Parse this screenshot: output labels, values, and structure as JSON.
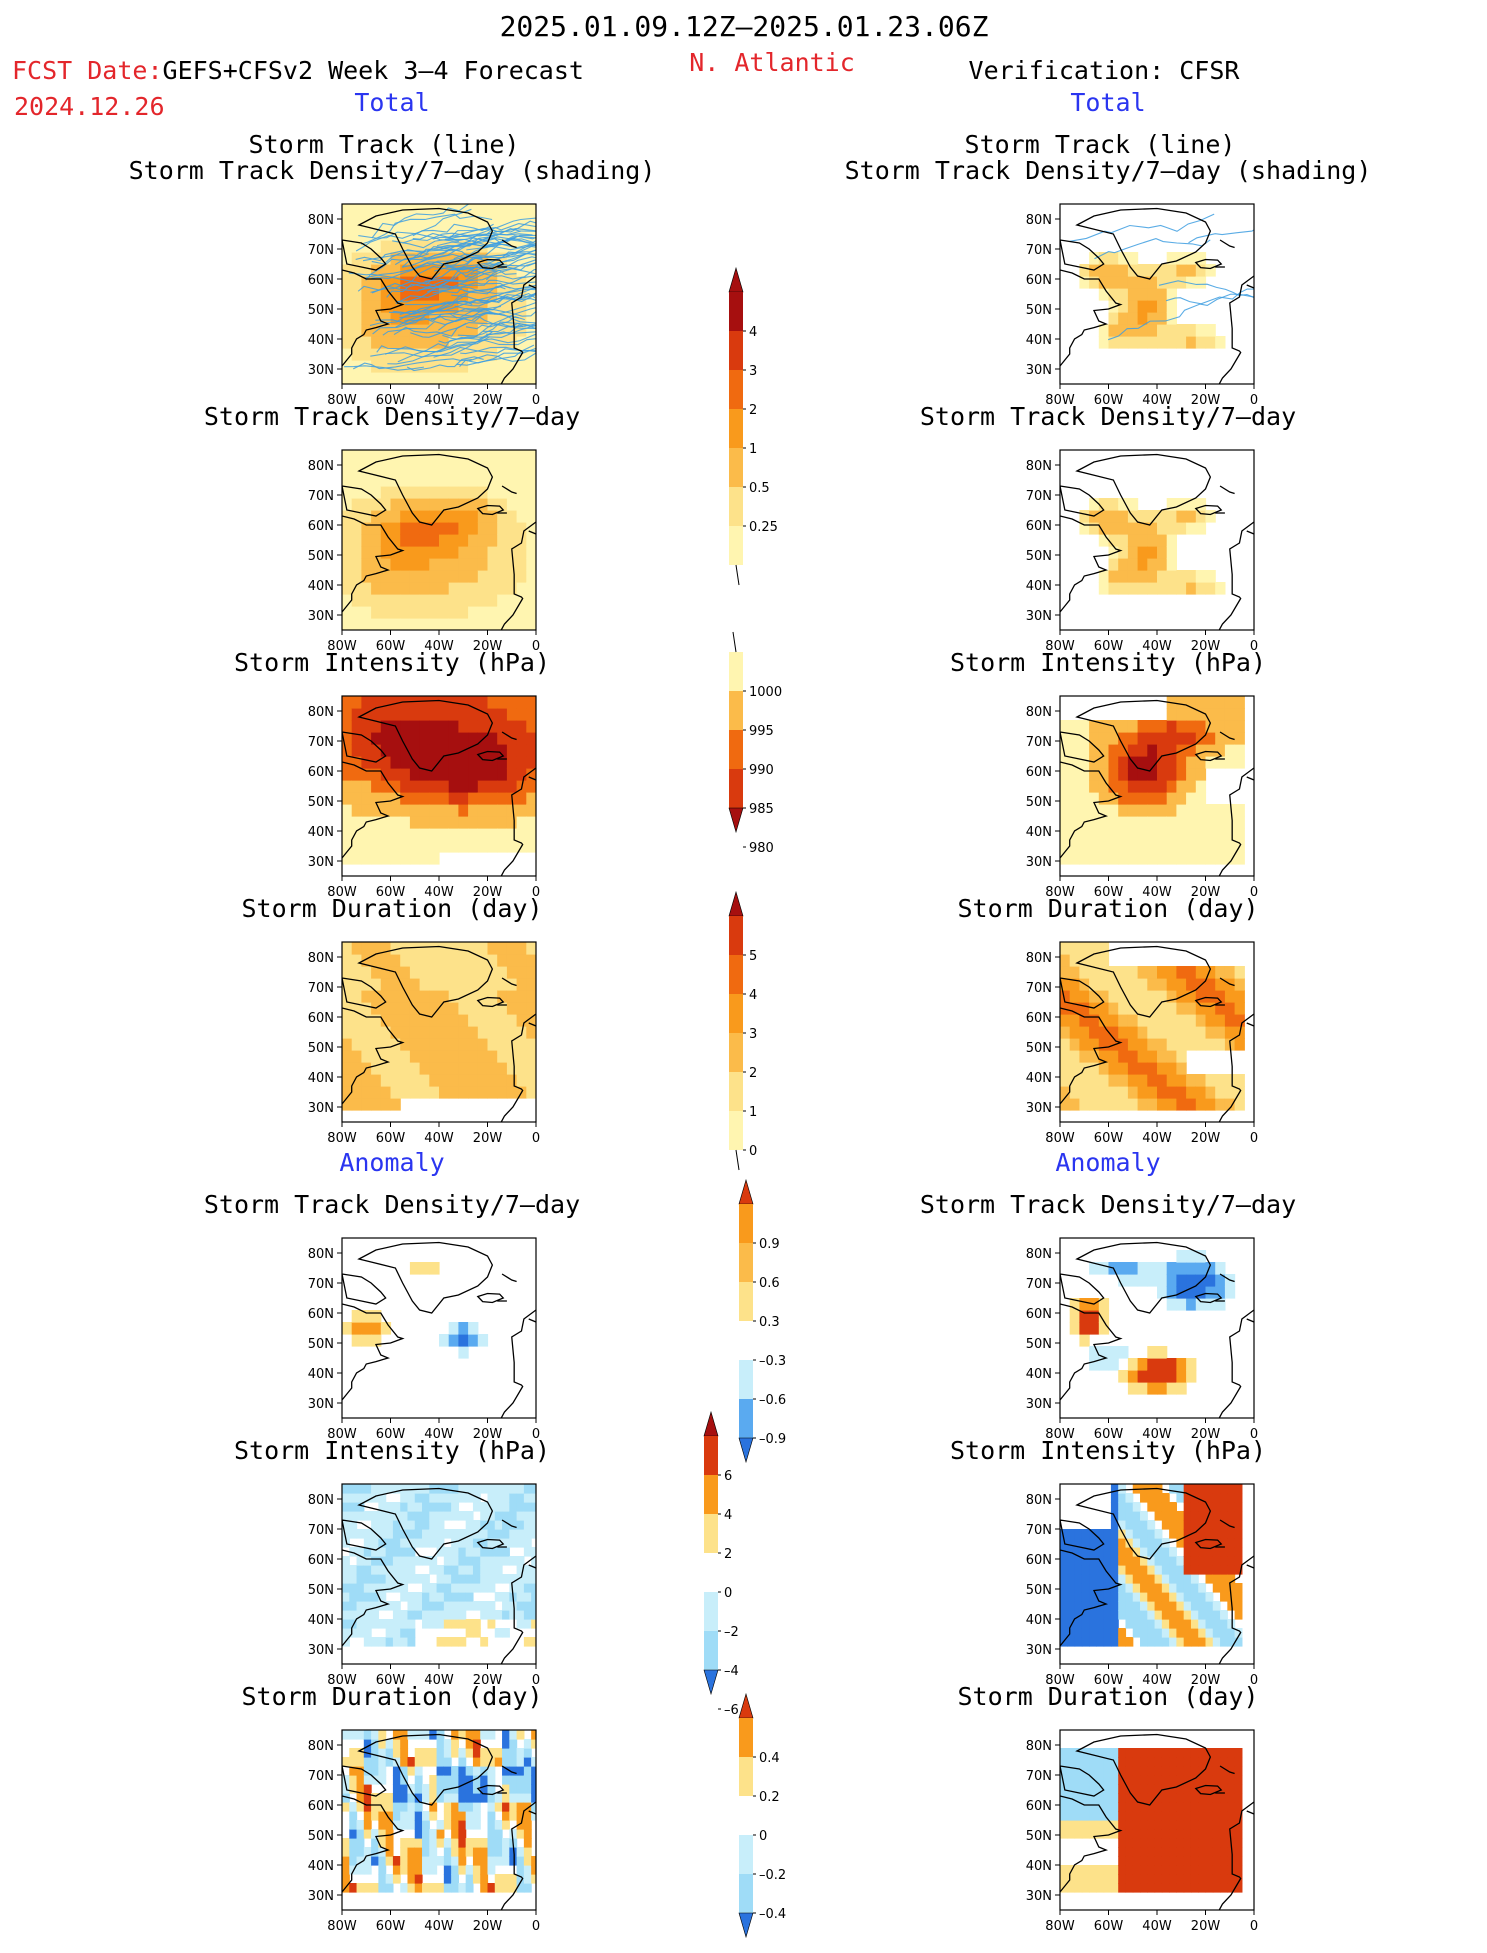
{
  "header": {
    "date_range": "2025.01.09.12Z–2025.01.23.06Z",
    "fcst_prefix": "FCST Date:",
    "fcst_model": "GEFS+CFSv2 Week 3–4 Forecast",
    "fcst_date": "2024.12.26",
    "region": "N. Atlantic",
    "verification": "Verification: CFSR"
  },
  "sections": {
    "total": "Total",
    "anomaly": "Anomaly"
  },
  "titles": {
    "track_line": "Storm Track (line)",
    "track_density_shading": "Storm Track Density/7–day (shading)",
    "track_density": "Storm Track Density/7–day",
    "intensity": "Storm Intensity (hPa)",
    "duration": "Storm Duration (day)"
  },
  "axes": {
    "lat": [
      "80N",
      "70N",
      "60N",
      "50N",
      "40N",
      "30N"
    ],
    "lon": [
      "80W",
      "60W",
      "40W",
      "20W",
      "0"
    ]
  },
  "colorbars": {
    "density": [
      "4",
      "3",
      "2",
      "1",
      "0.5",
      "0.25"
    ],
    "intensity": [
      "1000",
      "995",
      "990",
      "985",
      "980"
    ],
    "duration": [
      "5",
      "4",
      "3",
      "2",
      "1",
      "0"
    ],
    "density_anom": [
      "0.9",
      "0.6",
      "0.3",
      "–0.3",
      "–0.6",
      "–0.9"
    ],
    "intensity_anom": [
      "6",
      "4",
      "2",
      "0",
      "–2",
      "–4",
      "–6"
    ],
    "duration_anom": [
      "0.4",
      "0.2",
      "0",
      "–0.2",
      "–0.4"
    ]
  },
  "colors": {
    "warm": [
      "#fff5b0",
      "#fde28a",
      "#fbbb4a",
      "#f99a1c",
      "#f06a10",
      "#d93a0e",
      "#a60f0f"
    ],
    "cool": [
      "#ffffff",
      "#c8eefa",
      "#9fdcf7",
      "#5aaaf0",
      "#2a73de"
    ],
    "track_lines": "#3d9de0"
  }
}
